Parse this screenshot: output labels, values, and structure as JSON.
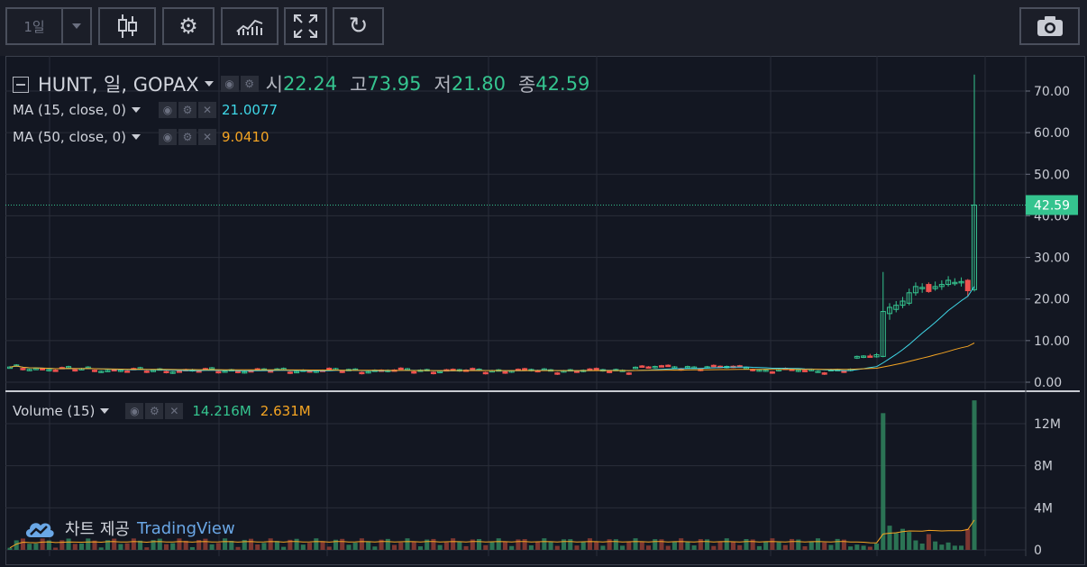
{
  "toolbar": {
    "interval_label": "1일",
    "icons": [
      "candles-icon",
      "gear-icon",
      "indicators-icon",
      "fullscreen-icon",
      "refresh-icon",
      "camera-icon"
    ]
  },
  "legend": {
    "symbol": "HUNT, 일, GOPAX",
    "open_label": "시",
    "open": "22.24",
    "high_label": "고",
    "high": "73.95",
    "low_label": "저",
    "low": "21.80",
    "close_label": "종",
    "close": "42.59",
    "ma15_label": "MA (15, close, 0)",
    "ma15_value": "21.0077",
    "ma50_label": "MA (50, close, 0)",
    "ma50_value": "9.0410",
    "volume_label": "Volume (15)",
    "volume_value": "14.216M",
    "volume_ma_value": "2.631M"
  },
  "credit": {
    "prefix": "차트 제공",
    "brand": "TradingView"
  },
  "colors": {
    "up": "#35c48f",
    "down": "#ef5350",
    "ma15": "#3fd8e8",
    "ma50": "#f5a523",
    "bg": "#131722",
    "grid": "#2a2e39"
  },
  "chart_data": {
    "type": "candlestick",
    "price_axis": {
      "ticks": [
        "70.00",
        "60.00",
        "50.00",
        "40.00",
        "30.00",
        "20.00",
        "10.00",
        "0.00"
      ],
      "range": [
        0,
        75
      ]
    },
    "volume_axis": {
      "ticks": [
        "12M",
        "8M",
        "4M",
        "0"
      ],
      "range": [
        0,
        14.5
      ]
    },
    "last_price_label": "42.59",
    "baseline_candles": {
      "count": 130,
      "level": 2.8
    },
    "candles": [
      {
        "o": 5.8,
        "h": 6.4,
        "l": 5.6,
        "c": 6.2,
        "v": 0.5
      },
      {
        "o": 6.0,
        "h": 6.5,
        "l": 5.8,
        "c": 6.3,
        "v": 0.4
      },
      {
        "o": 6.3,
        "h": 6.8,
        "l": 6.0,
        "c": 6.1,
        "v": 0.3
      },
      {
        "o": 6.1,
        "h": 7.0,
        "l": 5.9,
        "c": 6.6,
        "v": 0.6
      },
      {
        "o": 6.2,
        "h": 26.5,
        "l": 6.0,
        "c": 17.0,
        "v": 13.0
      },
      {
        "o": 16.5,
        "h": 19.0,
        "l": 15.0,
        "c": 18.0,
        "v": 2.3
      },
      {
        "o": 17.5,
        "h": 19.5,
        "l": 16.8,
        "c": 18.5,
        "v": 1.6
      },
      {
        "o": 18.5,
        "h": 20.5,
        "l": 17.8,
        "c": 19.5,
        "v": 2.0
      },
      {
        "o": 19.0,
        "h": 22.5,
        "l": 18.5,
        "c": 21.5,
        "v": 1.7
      },
      {
        "o": 21.5,
        "h": 24.0,
        "l": 20.8,
        "c": 23.0,
        "v": 0.9
      },
      {
        "o": 22.8,
        "h": 23.8,
        "l": 21.5,
        "c": 22.8,
        "v": 0.6
      },
      {
        "o": 23.5,
        "h": 24.0,
        "l": 21.5,
        "c": 21.8,
        "v": 1.5
      },
      {
        "o": 22.5,
        "h": 24.2,
        "l": 22.0,
        "c": 23.0,
        "v": 0.8
      },
      {
        "o": 23.0,
        "h": 24.5,
        "l": 22.2,
        "c": 23.5,
        "v": 0.5
      },
      {
        "o": 23.5,
        "h": 25.5,
        "l": 23.0,
        "c": 24.5,
        "v": 0.7
      },
      {
        "o": 24.0,
        "h": 25.0,
        "l": 23.2,
        "c": 24.0,
        "v": 0.4
      },
      {
        "o": 24.2,
        "h": 25.2,
        "l": 23.0,
        "c": 24.2,
        "v": 0.4
      },
      {
        "o": 24.5,
        "h": 24.8,
        "l": 20.5,
        "c": 22.0,
        "v": 2.0
      },
      {
        "o": 22.24,
        "h": 73.95,
        "l": 21.8,
        "c": 42.59,
        "v": 14.216
      }
    ]
  }
}
